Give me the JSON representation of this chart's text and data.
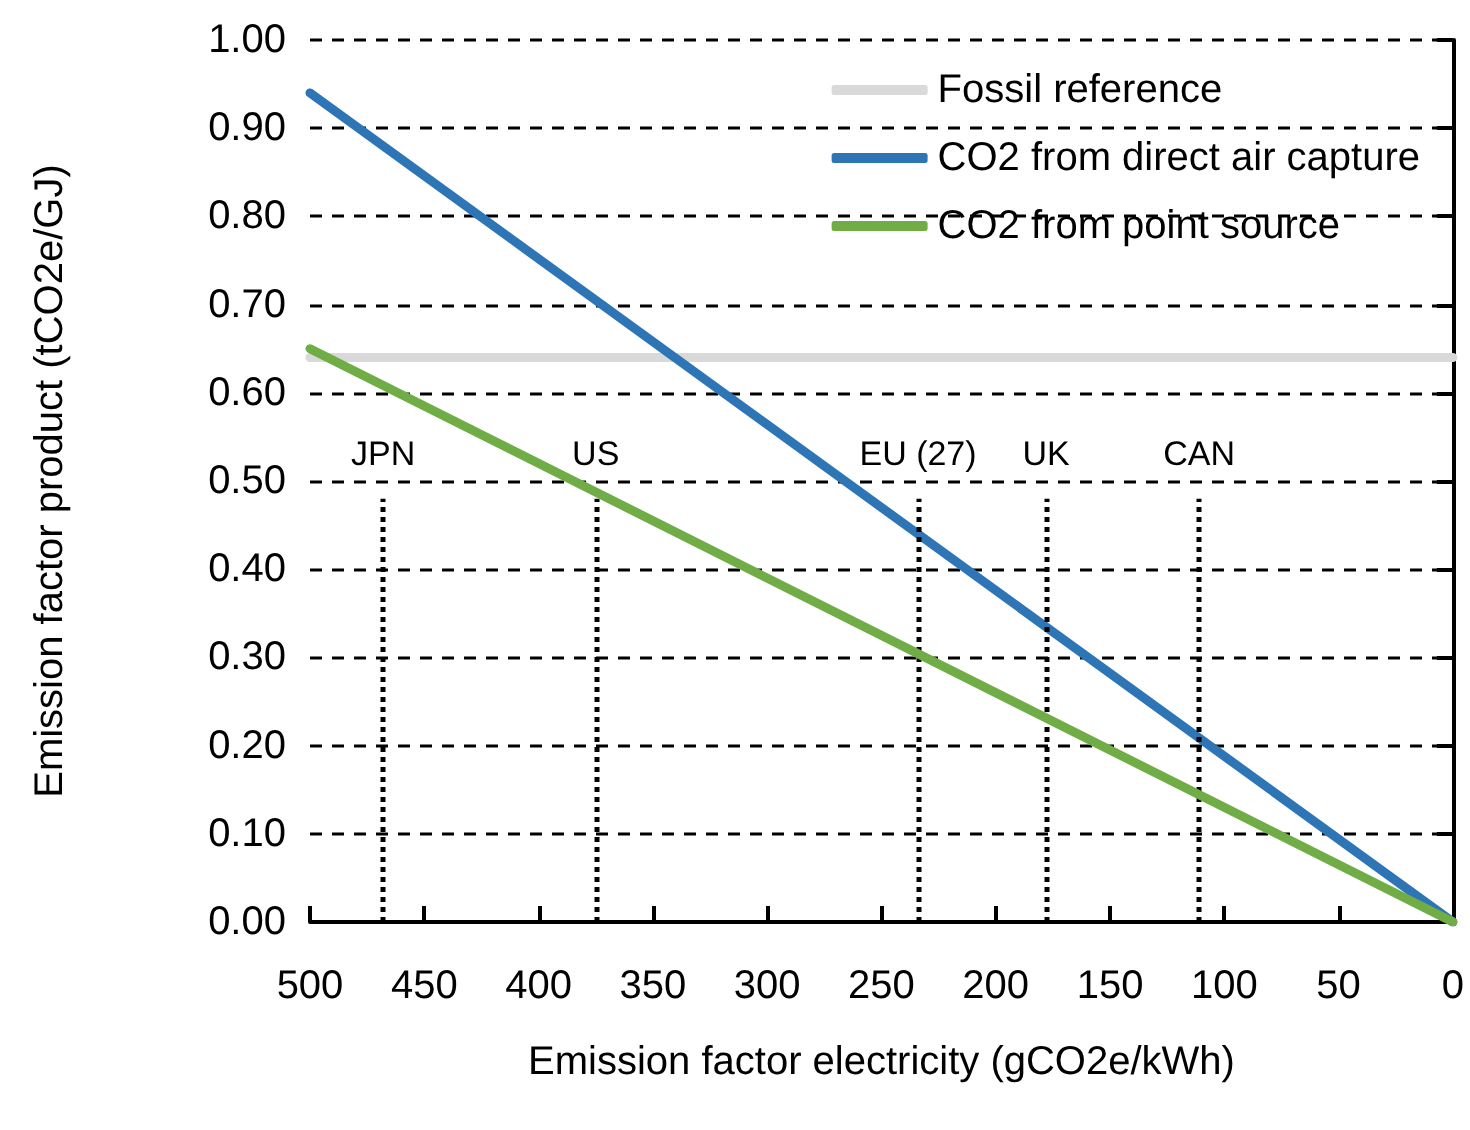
{
  "chart_data": {
    "type": "line",
    "xlabel": "Emission factor electricity (gCO2e/kWh)",
    "ylabel": "Emission factor product (tCO2e/GJ)",
    "x": [
      500,
      0
    ],
    "series": [
      {
        "name": "Fossil reference",
        "color": "#d9d9d9",
        "values": [
          0.64,
          0.64
        ]
      },
      {
        "name": "CO2 from direct air capture",
        "color": "#2e75b6",
        "values": [
          0.94,
          0
        ]
      },
      {
        "name": "CO2 from point source",
        "color": "#70ad47",
        "values": [
          0.65,
          0
        ]
      }
    ],
    "xlim": [
      500,
      0
    ],
    "xticks": [
      500,
      450,
      400,
      350,
      300,
      250,
      200,
      150,
      100,
      50,
      0
    ],
    "ylim": [
      0,
      1
    ],
    "yticks": [
      {
        "value": 0,
        "label": "0.00"
      },
      {
        "value": 0.1,
        "label": "0.10"
      },
      {
        "value": 0.2,
        "label": "0.20"
      },
      {
        "value": 0.3,
        "label": "0.30"
      },
      {
        "value": 0.4,
        "label": "0.40"
      },
      {
        "value": 0.5,
        "label": "0.50"
      },
      {
        "value": 0.6,
        "label": "0.60"
      },
      {
        "value": 0.7,
        "label": "0.70"
      },
      {
        "value": 0.8,
        "label": "0.80"
      },
      {
        "value": 0.9,
        "label": "0.90"
      },
      {
        "value": 1,
        "label": "1.00"
      }
    ],
    "ref_lines": [
      {
        "axis": "x",
        "value": 468,
        "label": "JPN",
        "line_style": "dotted",
        "color": "#000000"
      },
      {
        "axis": "x",
        "value": 375,
        "label": "US",
        "line_style": "dotted",
        "color": "#000000"
      },
      {
        "axis": "x",
        "value": 234,
        "label": "EU (27)",
        "line_style": "dotted",
        "color": "#000000"
      },
      {
        "axis": "x",
        "value": 178,
        "label": "UK",
        "line_style": "dotted",
        "color": "#000000"
      },
      {
        "axis": "x",
        "value": 111,
        "label": "CAN",
        "line_style": "dotted",
        "color": "#000000"
      }
    ],
    "grid": "y",
    "legend": "top right",
    "marker": "none",
    "line_style": "solid"
  }
}
